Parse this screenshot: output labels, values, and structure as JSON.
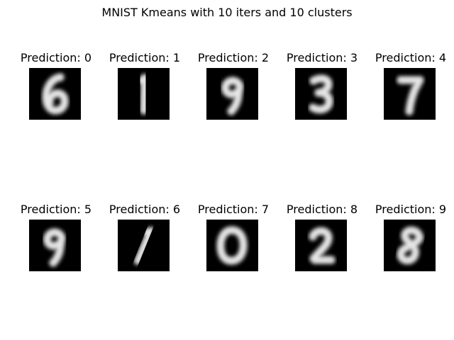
{
  "figure_title": "MNIST Kmeans with 10 iters and 10 clusters",
  "colors": {
    "background": "#ffffff",
    "image_background": "#000000",
    "digit_stroke": "#e6e6e6"
  },
  "chart_data": {
    "type": "image-grid",
    "title": "MNIST Kmeans with 10 iters and 10 clusters",
    "rows": 2,
    "cols": 5,
    "colormap": "gray",
    "panels": [
      {
        "title": "Prediction: 0",
        "prediction": 0,
        "centroid_digit": "6"
      },
      {
        "title": "Prediction: 1",
        "prediction": 1,
        "centroid_digit": "1"
      },
      {
        "title": "Prediction: 2",
        "prediction": 2,
        "centroid_digit": "9"
      },
      {
        "title": "Prediction: 3",
        "prediction": 3,
        "centroid_digit": "3"
      },
      {
        "title": "Prediction: 4",
        "prediction": 4,
        "centroid_digit": "7"
      },
      {
        "title": "Prediction: 5",
        "prediction": 5,
        "centroid_digit": "9"
      },
      {
        "title": "Prediction: 6",
        "prediction": 6,
        "centroid_digit": "1"
      },
      {
        "title": "Prediction: 7",
        "prediction": 7,
        "centroid_digit": "0"
      },
      {
        "title": "Prediction: 8",
        "prediction": 8,
        "centroid_digit": "2"
      },
      {
        "title": "Prediction: 9",
        "prediction": 9,
        "centroid_digit": "8"
      }
    ]
  }
}
